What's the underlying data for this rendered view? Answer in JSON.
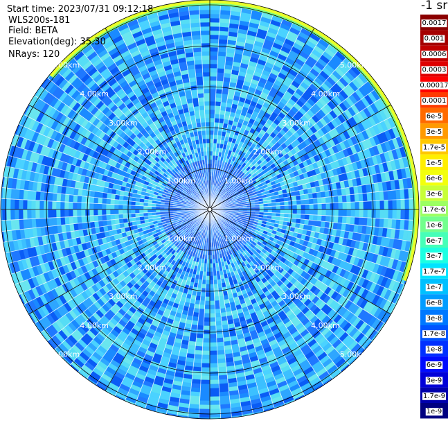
{
  "header": {
    "start_time": "Start time: 2023/07/31 09:12:18",
    "system": "WLS200s-181",
    "field": "Field: BETA",
    "elevation": "Elevation(deg): 35.30",
    "nrays": "NRays: 120"
  },
  "colorbar": {
    "unit": "-1 sr",
    "ticks": [
      {
        "label": "0.0017",
        "color": "#8b0000"
      },
      {
        "label": "0.001",
        "color": "#a50000"
      },
      {
        "label": "0.0006",
        "color": "#c00000"
      },
      {
        "label": "0.0003",
        "color": "#de0000"
      },
      {
        "label": "0.00017",
        "color": "#ff0000"
      },
      {
        "label": "0.0001",
        "color": "#ff3a00"
      },
      {
        "label": "6e-5",
        "color": "#ff6a00"
      },
      {
        "label": "3e-5",
        "color": "#ff9a00"
      },
      {
        "label": "1.7e-5",
        "color": "#ffc800"
      },
      {
        "label": "1e-5",
        "color": "#ffee00"
      },
      {
        "label": "6e-6",
        "color": "#f2ff0c"
      },
      {
        "label": "3e-6",
        "color": "#c8ff37"
      },
      {
        "label": "1.7e-6",
        "color": "#9cff62"
      },
      {
        "label": "1e-6",
        "color": "#72ff8d"
      },
      {
        "label": "6e-7",
        "color": "#46ffb8"
      },
      {
        "label": "3e-7",
        "color": "#1cffe2"
      },
      {
        "label": "1.7e-7",
        "color": "#00e4ff"
      },
      {
        "label": "1e-7",
        "color": "#00c0ff"
      },
      {
        "label": "6e-8",
        "color": "#009cff"
      },
      {
        "label": "3e-8",
        "color": "#0078ff"
      },
      {
        "label": "1.7e-8",
        "color": "#0054ff"
      },
      {
        "label": "1e-8",
        "color": "#0030ff"
      },
      {
        "label": "6e-9",
        "color": "#000cff"
      },
      {
        "label": "3e-9",
        "color": "#0000d8"
      },
      {
        "label": "1.7e-9",
        "color": "#0000ac"
      },
      {
        "label": "1e-9",
        "color": "#000080"
      }
    ]
  },
  "chart_data": {
    "type": "heatmap",
    "projection": "polar",
    "title": "",
    "field": "BETA",
    "units": "-1 sr",
    "elevation_deg": 35.3,
    "n_rays": 120,
    "scale": "log",
    "range_rings_km": [
      1,
      2,
      3,
      4,
      5
    ],
    "range_ring_labels": [
      "1.00km",
      "2.00km",
      "3.00km",
      "4.00km",
      "5.00km"
    ],
    "typical_background": "3e-8 to 1.7e-7",
    "features": [
      {
        "description": "high-beta arc",
        "range_km": 5.1,
        "azimuth_from_deg": 310,
        "azimuth_to_deg": 110,
        "value_range": "1e-6 to 1e-5"
      }
    ]
  }
}
